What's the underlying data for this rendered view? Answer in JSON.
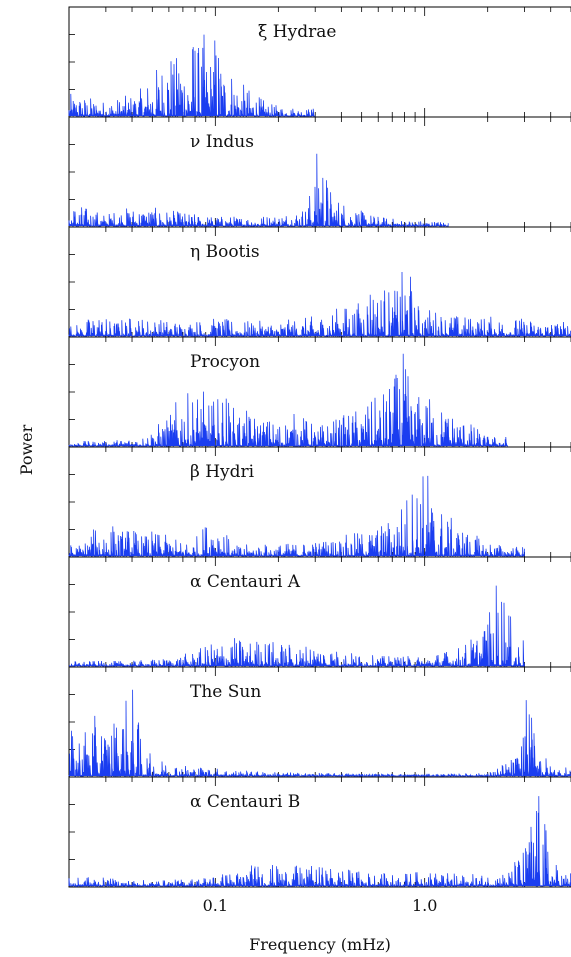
{
  "chart_data": {
    "type": "line",
    "xlabel": "Frequency (mHz)",
    "ylabel": "Power",
    "xscale": "log",
    "xlim": [
      0.02,
      5.0
    ],
    "xticks": [
      0.1,
      1.0
    ],
    "xtick_labels": [
      "0.1",
      "1.0"
    ],
    "series_color": "#1a3df0",
    "panels": [
      {
        "name": "ξ Hydrae",
        "x_start": 0.02,
        "x_end": 0.3,
        "peaks": [
          [
            0.022,
            0.22
          ],
          [
            0.03,
            0.15
          ],
          [
            0.04,
            0.22
          ],
          [
            0.046,
            0.3
          ],
          [
            0.05,
            0.45
          ],
          [
            0.055,
            0.55
          ],
          [
            0.06,
            0.8
          ],
          [
            0.064,
            0.5
          ],
          [
            0.068,
            0.9
          ],
          [
            0.072,
            0.6
          ],
          [
            0.076,
            0.7
          ],
          [
            0.08,
            0.95
          ],
          [
            0.085,
            0.6
          ],
          [
            0.088,
            0.85
          ],
          [
            0.092,
            0.5
          ],
          [
            0.1,
            0.9
          ],
          [
            0.11,
            0.55
          ],
          [
            0.12,
            0.5
          ],
          [
            0.13,
            0.35
          ],
          [
            0.15,
            0.25
          ],
          [
            0.18,
            0.12
          ],
          [
            0.22,
            0.1
          ],
          [
            0.27,
            0.08
          ]
        ]
      },
      {
        "name": "ν Indus",
        "x_start": 0.02,
        "x_end": 1.3,
        "peaks": [
          [
            0.022,
            0.22
          ],
          [
            0.025,
            0.18
          ],
          [
            0.03,
            0.12
          ],
          [
            0.035,
            0.18
          ],
          [
            0.045,
            0.2
          ],
          [
            0.06,
            0.16
          ],
          [
            0.08,
            0.12
          ],
          [
            0.1,
            0.1
          ],
          [
            0.14,
            0.1
          ],
          [
            0.2,
            0.12
          ],
          [
            0.27,
            0.2
          ],
          [
            0.3,
            0.55
          ],
          [
            0.31,
            0.95
          ],
          [
            0.32,
            0.9
          ],
          [
            0.33,
            0.7
          ],
          [
            0.35,
            0.4
          ],
          [
            0.38,
            0.3
          ],
          [
            0.42,
            0.25
          ],
          [
            0.5,
            0.15
          ],
          [
            0.6,
            0.1
          ],
          [
            0.8,
            0.06
          ],
          [
            1.1,
            0.05
          ]
        ]
      },
      {
        "name": "η Bootis",
        "x_start": 0.02,
        "x_end": 5.0,
        "peaks": [
          [
            0.023,
            0.12
          ],
          [
            0.027,
            0.25
          ],
          [
            0.032,
            0.15
          ],
          [
            0.04,
            0.2
          ],
          [
            0.05,
            0.18
          ],
          [
            0.07,
            0.15
          ],
          [
            0.1,
            0.18
          ],
          [
            0.14,
            0.15
          ],
          [
            0.2,
            0.15
          ],
          [
            0.3,
            0.2
          ],
          [
            0.4,
            0.3
          ],
          [
            0.5,
            0.35
          ],
          [
            0.55,
            0.6
          ],
          [
            0.6,
            0.45
          ],
          [
            0.65,
            0.55
          ],
          [
            0.7,
            0.4
          ],
          [
            0.75,
            0.55
          ],
          [
            0.8,
            0.7
          ],
          [
            0.83,
            0.95
          ],
          [
            0.88,
            0.35
          ],
          [
            1.0,
            0.3
          ],
          [
            1.2,
            0.25
          ],
          [
            1.5,
            0.2
          ],
          [
            2.0,
            0.2
          ],
          [
            3.0,
            0.18
          ],
          [
            4.0,
            0.15
          ]
        ]
      },
      {
        "name": "Procyon",
        "x_start": 0.02,
        "x_end": 2.5,
        "peaks": [
          [
            0.03,
            0.05
          ],
          [
            0.045,
            0.1
          ],
          [
            0.055,
            0.25
          ],
          [
            0.06,
            0.3
          ],
          [
            0.065,
            0.45
          ],
          [
            0.07,
            0.6
          ],
          [
            0.075,
            0.5
          ],
          [
            0.08,
            0.55
          ],
          [
            0.085,
            0.6
          ],
          [
            0.09,
            0.5
          ],
          [
            0.1,
            0.45
          ],
          [
            0.11,
            0.6
          ],
          [
            0.12,
            0.4
          ],
          [
            0.14,
            0.35
          ],
          [
            0.16,
            0.3
          ],
          [
            0.2,
            0.25
          ],
          [
            0.25,
            0.35
          ],
          [
            0.3,
            0.2
          ],
          [
            0.4,
            0.3
          ],
          [
            0.5,
            0.4
          ],
          [
            0.6,
            0.5
          ],
          [
            0.7,
            0.65
          ],
          [
            0.8,
            0.95
          ],
          [
            0.85,
            0.6
          ],
          [
            0.9,
            0.5
          ],
          [
            1.0,
            0.55
          ],
          [
            1.2,
            0.4
          ],
          [
            1.5,
            0.3
          ],
          [
            2.0,
            0.1
          ]
        ]
      },
      {
        "name": "β Hydri",
        "x_start": 0.02,
        "x_end": 3.0,
        "peaks": [
          [
            0.023,
            0.12
          ],
          [
            0.027,
            0.3
          ],
          [
            0.03,
            0.4
          ],
          [
            0.035,
            0.25
          ],
          [
            0.04,
            0.3
          ],
          [
            0.045,
            0.2
          ],
          [
            0.05,
            0.25
          ],
          [
            0.06,
            0.2
          ],
          [
            0.07,
            0.15
          ],
          [
            0.08,
            0.18
          ],
          [
            0.1,
            0.5
          ],
          [
            0.12,
            0.1
          ],
          [
            0.15,
            0.12
          ],
          [
            0.2,
            0.12
          ],
          [
            0.3,
            0.15
          ],
          [
            0.4,
            0.2
          ],
          [
            0.5,
            0.25
          ],
          [
            0.6,
            0.3
          ],
          [
            0.7,
            0.4
          ],
          [
            0.8,
            0.6
          ],
          [
            0.9,
            0.8
          ],
          [
            0.95,
            0.95
          ],
          [
            1.0,
            0.85
          ],
          [
            1.05,
            0.9
          ],
          [
            1.1,
            0.6
          ],
          [
            1.3,
            0.4
          ],
          [
            1.6,
            0.25
          ],
          [
            2.0,
            0.15
          ],
          [
            2.5,
            0.1
          ]
        ]
      },
      {
        "name": "α Centauri A",
        "x_start": 0.02,
        "x_end": 3.0,
        "peaks": [
          [
            0.03,
            0.05
          ],
          [
            0.04,
            0.05
          ],
          [
            0.06,
            0.08
          ],
          [
            0.08,
            0.15
          ],
          [
            0.1,
            0.25
          ],
          [
            0.12,
            0.3
          ],
          [
            0.14,
            0.25
          ],
          [
            0.16,
            0.28
          ],
          [
            0.2,
            0.25
          ],
          [
            0.25,
            0.2
          ],
          [
            0.3,
            0.25
          ],
          [
            0.4,
            0.15
          ],
          [
            0.6,
            0.1
          ],
          [
            1.0,
            0.1
          ],
          [
            1.5,
            0.2
          ],
          [
            1.8,
            0.35
          ],
          [
            2.0,
            0.5
          ],
          [
            2.1,
            0.6
          ],
          [
            2.2,
            0.9
          ],
          [
            2.3,
            0.95
          ],
          [
            2.4,
            0.85
          ],
          [
            2.5,
            0.6
          ],
          [
            2.7,
            0.3
          ]
        ]
      },
      {
        "name": "The Sun",
        "x_start": 0.02,
        "x_end": 5.0,
        "peaks": [
          [
            0.022,
            0.45
          ],
          [
            0.026,
            0.6
          ],
          [
            0.03,
            0.55
          ],
          [
            0.035,
            0.65
          ],
          [
            0.04,
            0.95
          ],
          [
            0.045,
            0.3
          ],
          [
            0.05,
            0.2
          ],
          [
            0.06,
            0.15
          ],
          [
            0.08,
            0.1
          ],
          [
            0.1,
            0.08
          ],
          [
            0.15,
            0.05
          ],
          [
            0.2,
            0.04
          ],
          [
            0.3,
            0.03
          ],
          [
            0.5,
            0.03
          ],
          [
            1.0,
            0.02
          ],
          [
            2.0,
            0.03
          ],
          [
            2.7,
            0.2
          ],
          [
            3.0,
            0.5
          ],
          [
            3.1,
            0.95
          ],
          [
            3.2,
            0.6
          ],
          [
            3.4,
            0.8
          ],
          [
            3.6,
            0.3
          ],
          [
            4.0,
            0.1
          ]
        ]
      },
      {
        "name": "α Centauri B",
        "x_start": 0.02,
        "x_end": 5.0,
        "peaks": [
          [
            0.022,
            0.08
          ],
          [
            0.025,
            0.1
          ],
          [
            0.03,
            0.08
          ],
          [
            0.04,
            0.06
          ],
          [
            0.06,
            0.06
          ],
          [
            0.08,
            0.08
          ],
          [
            0.1,
            0.12
          ],
          [
            0.13,
            0.15
          ],
          [
            0.16,
            0.25
          ],
          [
            0.2,
            0.2
          ],
          [
            0.3,
            0.2
          ],
          [
            0.4,
            0.18
          ],
          [
            0.5,
            0.15
          ],
          [
            0.7,
            0.12
          ],
          [
            1.0,
            0.15
          ],
          [
            1.5,
            0.12
          ],
          [
            2.0,
            0.12
          ],
          [
            2.5,
            0.15
          ],
          [
            3.0,
            0.4
          ],
          [
            3.2,
            0.7
          ],
          [
            3.4,
            0.95
          ],
          [
            3.6,
            0.9
          ],
          [
            3.8,
            0.6
          ],
          [
            4.0,
            0.3
          ],
          [
            4.5,
            0.15
          ]
        ]
      }
    ]
  }
}
